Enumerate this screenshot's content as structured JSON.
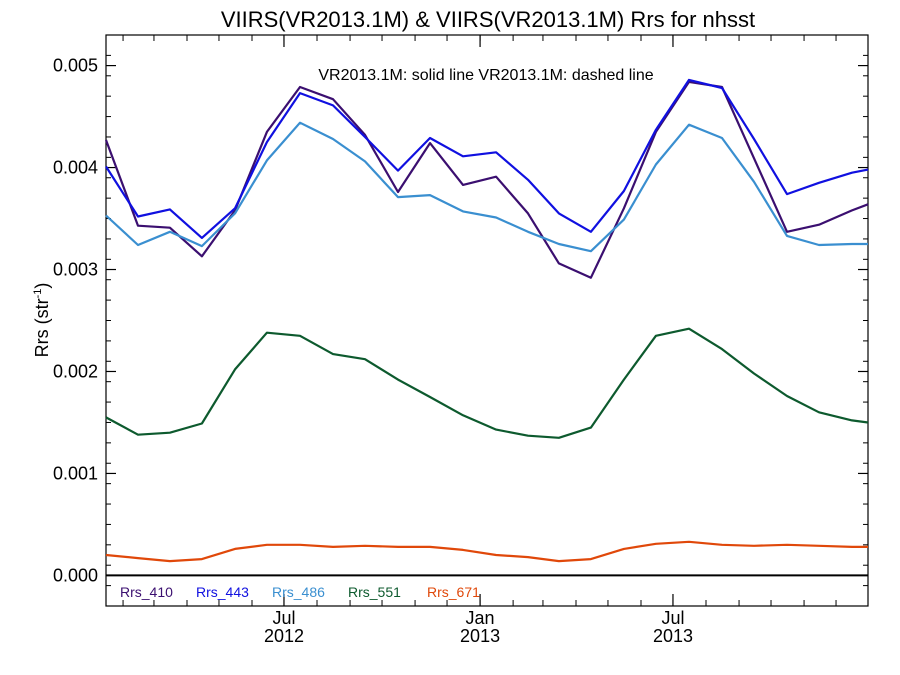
{
  "chart_data": {
    "type": "line",
    "title": "VIIRS(VR2013.1M) & VIIRS(VR2013.1M)  Rrs for nhsst",
    "ylabel": "Rrs (str",
    "ylabel_sup": "-1",
    "ylabel_close": ")",
    "annotation": "VR2013.1M: solid line   VR2013.1M: dashed line",
    "ylim": [
      -0.0003,
      0.0053
    ],
    "xlim": [
      "2012-01-16",
      "2013-12-31"
    ],
    "yticks": [
      "0.000",
      "0.001",
      "0.002",
      "0.003",
      "0.004",
      "0.005"
    ],
    "ytick_values": [
      0,
      0.001,
      0.002,
      0.003,
      0.004,
      0.005
    ],
    "xticks": [
      {
        "date": "2012-07-01",
        "label": "Jul",
        "year": "2012"
      },
      {
        "date": "2013-01-01",
        "label": "Jan",
        "year": "2013"
      },
      {
        "date": "2013-07-01",
        "label": "Jul",
        "year": "2013"
      }
    ],
    "zero_line": true,
    "x": [
      "2012-01-16",
      "2012-02-15",
      "2012-03-16",
      "2012-04-15",
      "2012-05-16",
      "2012-06-15",
      "2012-07-16",
      "2012-08-16",
      "2012-09-15",
      "2012-10-16",
      "2012-11-15",
      "2012-12-16",
      "2013-01-16",
      "2013-02-15",
      "2013-03-16",
      "2013-04-15",
      "2013-05-16",
      "2013-06-15",
      "2013-07-16",
      "2013-08-16",
      "2013-09-15",
      "2013-10-16",
      "2013-11-15",
      "2013-12-16",
      "2013-12-31"
    ],
    "series": [
      {
        "name": "Rrs_410",
        "color": "#3b0f70",
        "values": [
          0.00427,
          0.00343,
          0.00341,
          0.00313,
          0.00358,
          0.00435,
          0.00479,
          0.00467,
          0.00432,
          0.00376,
          0.00424,
          0.00383,
          0.00391,
          0.00355,
          0.00306,
          0.00292,
          0.0036,
          0.00435,
          0.00484,
          0.00479,
          null,
          0.00337,
          0.00344,
          0.00358,
          0.00364
        ]
      },
      {
        "name": "Rrs_443",
        "color": "#1010e0",
        "values": [
          0.00401,
          0.00352,
          0.00359,
          0.00331,
          0.0036,
          0.00425,
          0.00473,
          0.00461,
          0.0043,
          0.00397,
          0.00429,
          0.00411,
          0.00415,
          0.00388,
          0.00355,
          0.00337,
          0.00377,
          0.00437,
          0.00486,
          0.00478,
          0.00428,
          0.00374,
          0.00385,
          0.00395,
          0.00398
        ]
      },
      {
        "name": "Rrs_486",
        "color": "#3a8fd0",
        "values": [
          0.00353,
          0.00324,
          0.00337,
          0.00323,
          0.00355,
          0.00407,
          0.00444,
          0.00428,
          0.00406,
          0.00371,
          0.00373,
          0.00357,
          0.00351,
          0.00337,
          0.00325,
          0.00318,
          0.00349,
          0.00403,
          0.00442,
          0.00429,
          0.00386,
          0.00333,
          0.00324,
          0.00325,
          0.00325
        ]
      },
      {
        "name": "Rrs_551",
        "color": "#0d5a2e",
        "values": [
          0.00155,
          0.00138,
          0.0014,
          0.00149,
          0.00202,
          0.00238,
          0.00235,
          0.00217,
          0.00212,
          0.00192,
          0.00175,
          0.00157,
          0.00143,
          0.00137,
          0.00135,
          0.00145,
          0.00192,
          0.00235,
          0.00242,
          0.00222,
          0.00198,
          0.00176,
          0.0016,
          0.00152,
          0.0015
        ]
      },
      {
        "name": "Rrs_671",
        "color": "#e0480a",
        "values": [
          0.0002,
          0.00017,
          0.00014,
          0.00016,
          0.00026,
          0.0003,
          0.0003,
          0.00028,
          0.00029,
          0.00028,
          0.00028,
          0.00025,
          0.0002,
          0.00018,
          0.00014,
          0.00016,
          0.00026,
          0.00031,
          0.00033,
          0.0003,
          0.00029,
          0.0003,
          0.00029,
          0.00028,
          0.00028
        ]
      }
    ]
  }
}
